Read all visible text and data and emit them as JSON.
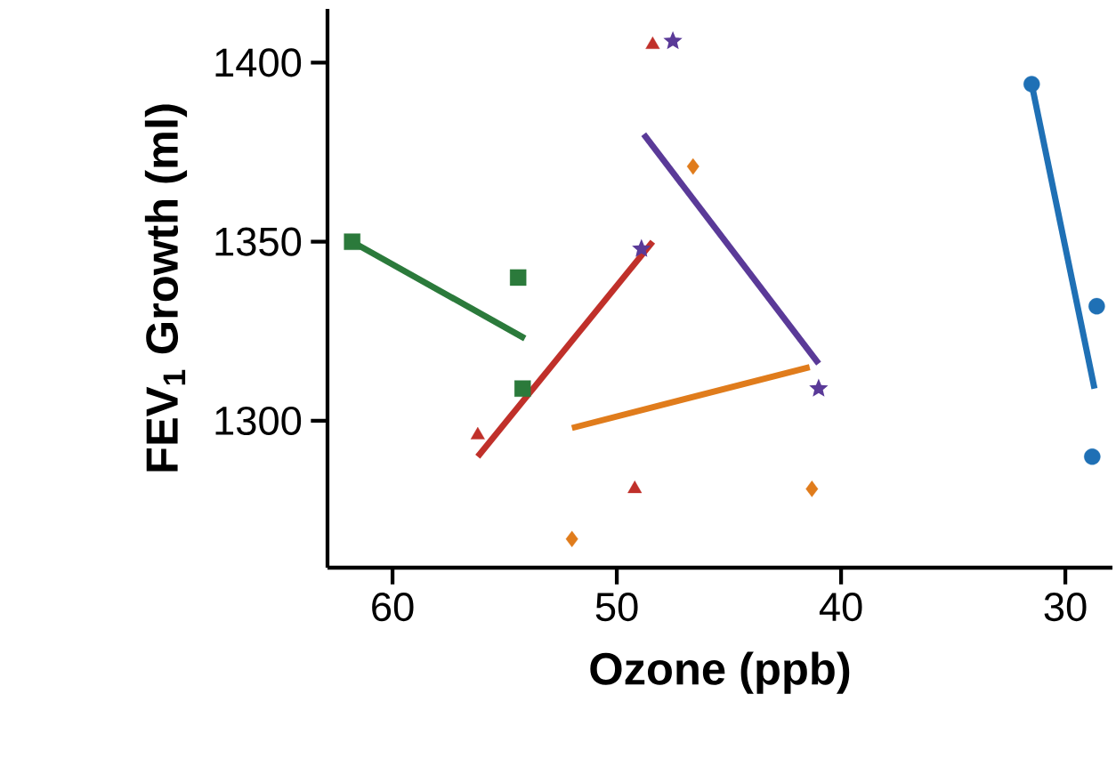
{
  "chart_data": {
    "type": "scatter",
    "xlabel": "Ozone (ppb)",
    "ylabel": "FEV$_{1}$ Growth (ml)",
    "xlim": [
      62.9,
      27.9
    ],
    "ylim": [
      1259,
      1415
    ],
    "xticks": [
      60,
      50,
      40,
      30
    ],
    "yticks": [
      1300,
      1350,
      1400
    ],
    "series": [
      {
        "color": "#2b7a3b",
        "marker": "square",
        "x": [
          61.8,
          54.4,
          54.2
        ],
        "values": [
          1350,
          1340,
          1309
        ]
      },
      {
        "type": "line",
        "color": "#2b7a3b",
        "marker": "none",
        "x": [
          61.8,
          54.1
        ],
        "values": [
          1350,
          1323
        ]
      },
      {
        "color": "#c0302a",
        "marker": "triangle",
        "x": [
          56.2,
          49.2,
          48.4
        ],
        "values": [
          1296,
          1281,
          1405
        ]
      },
      {
        "type": "line",
        "color": "#c0302a",
        "marker": "none",
        "x": [
          56.2,
          48.4
        ],
        "values": [
          1290,
          1350
        ]
      },
      {
        "color": "#5a3a98",
        "marker": "star",
        "x": [
          48.9,
          47.5,
          41.0
        ],
        "values": [
          1348,
          1406,
          1309
        ]
      },
      {
        "type": "line",
        "color": "#5a3a98",
        "marker": "none",
        "x": [
          48.8,
          41.0
        ],
        "values": [
          1380,
          1316
        ]
      },
      {
        "color": "#e07c1c",
        "marker": "diamond",
        "x": [
          52.0,
          46.6,
          41.3
        ],
        "values": [
          1267,
          1371,
          1281
        ]
      },
      {
        "type": "line",
        "color": "#e07c1c",
        "marker": "none",
        "x": [
          52.0,
          41.4
        ],
        "values": [
          1298,
          1315
        ]
      },
      {
        "color": "#1f70b5",
        "marker": "circle",
        "x": [
          31.5,
          28.6,
          28.8
        ],
        "values": [
          1394,
          1332,
          1290
        ]
      },
      {
        "type": "line",
        "color": "#1f70b5",
        "marker": "none",
        "x": [
          31.5,
          28.7
        ],
        "values": [
          1394,
          1309
        ]
      }
    ]
  }
}
